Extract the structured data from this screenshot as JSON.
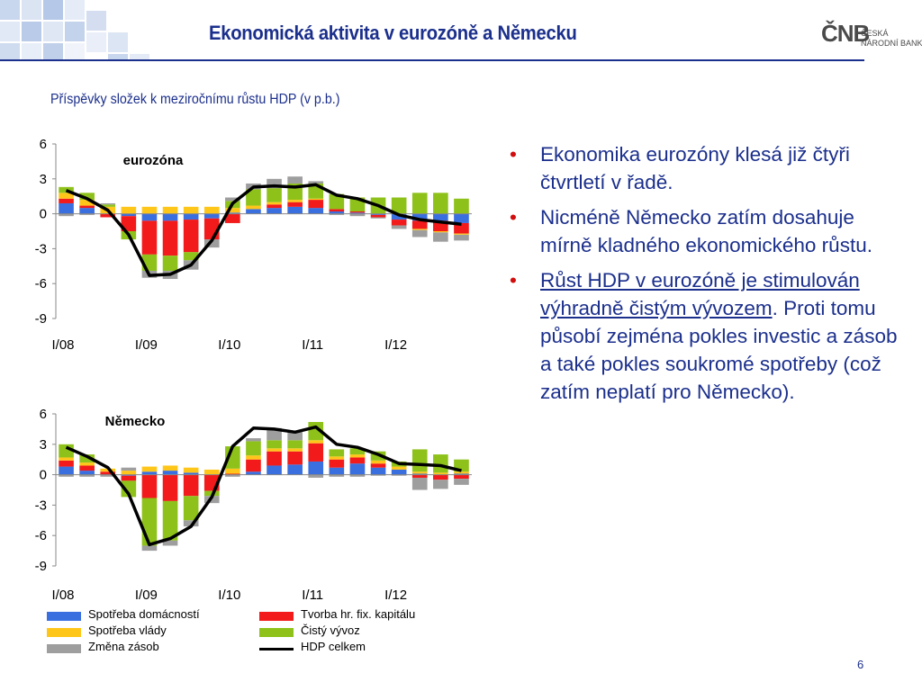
{
  "slide": {
    "title": "Ekonomická aktivita v eurozóně a Německu",
    "subtitle": "Příspěvky složek k meziročnímu růstu HDP (v p.b.)",
    "page_number": "6",
    "logo": {
      "mark": "ČNB",
      "line1": "ČESKÁ",
      "line2": "NÁRODNÍ BANKA"
    }
  },
  "colors": {
    "title": "#1b2f8c",
    "bullet_marker": "#d10d0d",
    "households": "#3a6fe0",
    "gfcf": "#f21a1a",
    "government": "#ffc61a",
    "net_exports": "#8ec21a",
    "inventories": "#9e9e9e",
    "gdp": "#000000"
  },
  "bullets": [
    {
      "parts": [
        {
          "text": "Ekonomika eurozóny klesá již čtyři čtvrtletí v řadě.",
          "underline": false
        }
      ]
    },
    {
      "parts": [
        {
          "text": "Nicméně Německo zatím dosahuje mírně kladného ekonomického růstu.",
          "underline": false
        }
      ]
    },
    {
      "parts": [
        {
          "text": "Růst HDP v eurozóně je stimulován výhradně čistým vývozem",
          "underline": true
        },
        {
          "text": ". Proti tomu působí zejména pokles investic a zásob a také pokles soukromé spotřeby (což zatím neplatí pro Německo).",
          "underline": false
        }
      ]
    }
  ],
  "legend": [
    {
      "label": "Spotřeba domácností",
      "key": "households",
      "kind": "bar"
    },
    {
      "label": "Tvorba hr. fix. kapitálu",
      "key": "gfcf",
      "kind": "bar"
    },
    {
      "label": "Spotřeba vlády",
      "key": "government",
      "kind": "bar"
    },
    {
      "label": "Čistý vývoz",
      "key": "net_exports",
      "kind": "bar"
    },
    {
      "label": "Změna zásob",
      "key": "inventories",
      "kind": "bar"
    },
    {
      "label": "HDP celkem",
      "key": "gdp",
      "kind": "line"
    }
  ],
  "chart_data": [
    {
      "type": "bar",
      "stacked": true,
      "title": "eurozóna",
      "ylim": [
        -9,
        6
      ],
      "yticks": [
        6,
        3,
        0,
        -3,
        -6,
        -9
      ],
      "x_tick_labels": [
        "I/08",
        "I/09",
        "I/10",
        "I/11",
        "I/12"
      ],
      "x_tick_label_index": [
        0,
        4,
        8,
        12,
        16
      ],
      "categories": [
        "I/08",
        "II/08",
        "III/08",
        "IV/08",
        "I/09",
        "II/09",
        "III/09",
        "IV/09",
        "I/10",
        "II/10",
        "III/10",
        "IV/10",
        "I/11",
        "II/11",
        "III/11",
        "IV/11",
        "I/12",
        "II/12",
        "III/12",
        "IV/12"
      ],
      "series": [
        {
          "name": "Spotřeba domácností",
          "key": "households",
          "values": [
            0.9,
            0.5,
            0.0,
            -0.2,
            -0.6,
            -0.6,
            -0.5,
            -0.4,
            0.1,
            0.4,
            0.5,
            0.6,
            0.5,
            0.2,
            0.1,
            -0.1,
            -0.5,
            -0.6,
            -0.6,
            -0.8
          ]
        },
        {
          "name": "Tvorba hr. fix. kapitálu",
          "key": "gfcf",
          "values": [
            0.4,
            0.2,
            -0.3,
            -1.3,
            -2.9,
            -3.0,
            -2.8,
            -1.8,
            -0.8,
            0.0,
            0.3,
            0.4,
            0.7,
            0.2,
            0.1,
            -0.2,
            -0.5,
            -0.7,
            -0.9,
            -0.9
          ]
        },
        {
          "name": "Spotřeba vlády",
          "key": "government",
          "values": [
            0.5,
            0.5,
            0.6,
            0.6,
            0.6,
            0.6,
            0.6,
            0.6,
            0.4,
            0.3,
            0.2,
            0.2,
            0.1,
            0.0,
            0.0,
            0.0,
            0.0,
            -0.1,
            -0.1,
            -0.1
          ]
        },
        {
          "name": "Čistý vývoz",
          "key": "net_exports",
          "values": [
            0.5,
            0.6,
            0.2,
            -0.7,
            -1.4,
            -1.3,
            -0.7,
            0.0,
            0.6,
            1.4,
            1.2,
            1.4,
            1.3,
            1.3,
            1.2,
            1.4,
            1.4,
            1.8,
            1.8,
            1.3
          ]
        },
        {
          "name": "Změna zásob",
          "key": "inventories",
          "values": [
            -0.2,
            -0.1,
            0.1,
            0.0,
            -0.6,
            -0.7,
            -0.8,
            -0.7,
            0.3,
            0.5,
            0.8,
            0.6,
            0.2,
            -0.1,
            -0.2,
            -0.1,
            -0.3,
            -0.6,
            -0.8,
            -0.5
          ]
        },
        {
          "name": "HDP celkem",
          "key": "gdp",
          "kind": "line",
          "values": [
            2.0,
            1.3,
            0.3,
            -1.8,
            -5.3,
            -5.2,
            -4.4,
            -2.3,
            0.9,
            2.3,
            2.4,
            2.3,
            2.5,
            1.6,
            1.3,
            0.7,
            -0.1,
            -0.5,
            -0.7,
            -0.9
          ]
        }
      ]
    },
    {
      "type": "bar",
      "stacked": true,
      "title": "Německo",
      "ylim": [
        -9,
        6
      ],
      "yticks": [
        6,
        3,
        0,
        -3,
        -6,
        -9
      ],
      "x_tick_labels": [
        "I/08",
        "I/09",
        "I/10",
        "I/11",
        "I/12"
      ],
      "x_tick_label_index": [
        0,
        4,
        8,
        12,
        16
      ],
      "categories": [
        "I/08",
        "II/08",
        "III/08",
        "IV/08",
        "I/09",
        "II/09",
        "III/09",
        "IV/09",
        "I/10",
        "II/10",
        "III/10",
        "IV/10",
        "I/11",
        "II/11",
        "III/11",
        "IV/11",
        "I/12",
        "II/12",
        "III/12",
        "IV/12"
      ],
      "series": [
        {
          "name": "Spotřeba domácností",
          "key": "households",
          "values": [
            0.8,
            0.4,
            0.0,
            -0.1,
            0.3,
            0.4,
            0.2,
            0.0,
            0.0,
            0.3,
            0.9,
            1.0,
            1.3,
            0.7,
            1.1,
            0.7,
            0.5,
            0.1,
            0.0,
            0.1
          ]
        },
        {
          "name": "Tvorba hr. fix. kapitálu",
          "key": "gfcf",
          "values": [
            0.6,
            0.5,
            0.3,
            -0.5,
            -2.3,
            -2.6,
            -2.1,
            -1.6,
            0.1,
            1.2,
            1.4,
            1.3,
            1.8,
            0.8,
            0.6,
            0.4,
            0.0,
            -0.3,
            -0.5,
            -0.4
          ]
        },
        {
          "name": "Spotřeba vlády",
          "key": "government",
          "values": [
            0.3,
            0.3,
            0.3,
            0.4,
            0.5,
            0.5,
            0.5,
            0.5,
            0.5,
            0.4,
            0.3,
            0.3,
            0.3,
            0.3,
            0.3,
            0.3,
            0.3,
            0.2,
            0.2,
            0.2
          ]
        },
        {
          "name": "Čistý vývoz",
          "key": "net_exports",
          "values": [
            1.3,
            0.8,
            0.0,
            -1.6,
            -4.7,
            -3.9,
            -2.4,
            -0.5,
            2.2,
            1.4,
            0.8,
            0.8,
            1.8,
            0.7,
            0.6,
            0.9,
            0.5,
            2.2,
            1.8,
            1.2
          ]
        },
        {
          "name": "Změna zásob",
          "key": "inventories",
          "values": [
            -0.2,
            -0.2,
            -0.2,
            0.3,
            -0.5,
            -0.5,
            -0.6,
            -0.7,
            -0.2,
            0.3,
            1.2,
            0.8,
            -0.3,
            -0.2,
            -0.2,
            -0.1,
            -0.1,
            -1.2,
            -0.9,
            -0.6
          ]
        },
        {
          "name": "HDP celkem",
          "key": "gdp",
          "kind": "line",
          "values": [
            2.7,
            1.8,
            0.7,
            -1.9,
            -6.9,
            -6.3,
            -5.1,
            -2.2,
            2.8,
            4.6,
            4.5,
            4.2,
            4.7,
            3.0,
            2.7,
            2.0,
            1.1,
            1.0,
            0.9,
            0.4
          ]
        }
      ]
    }
  ]
}
